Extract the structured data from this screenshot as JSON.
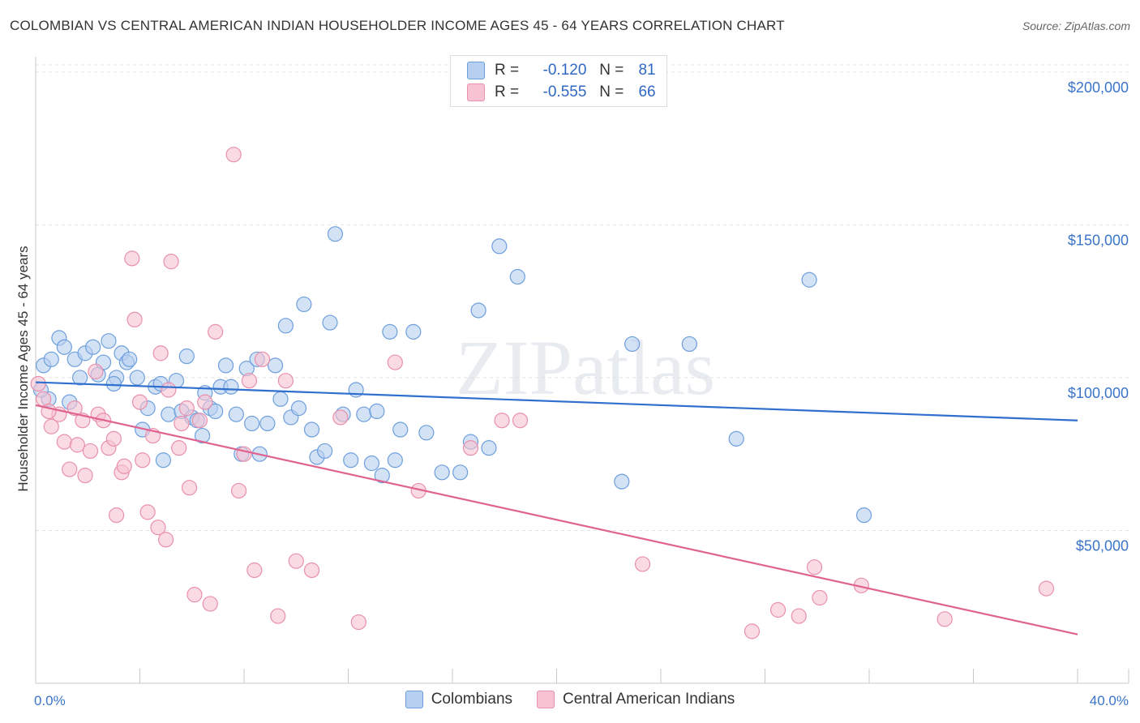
{
  "title": "COLOMBIAN VS CENTRAL AMERICAN INDIAN HOUSEHOLDER INCOME AGES 45 - 64 YEARS CORRELATION CHART",
  "source": "Source: ZipAtlas.com",
  "watermark": "ZIPatlas",
  "colors": {
    "blue_fill": "#b7cff0",
    "blue_stroke": "#6d9fdc",
    "blue_line": "#2f6fce",
    "pink_fill": "#f7c3d2",
    "pink_stroke": "#e890ac",
    "pink_line": "#e0638f"
  },
  "legend": {
    "rows": [
      {
        "r_label": "R =",
        "r_value": "-0.120",
        "n_label": "N =",
        "n_value": "81"
      },
      {
        "r_label": "R =",
        "r_value": "-0.555",
        "n_label": "N =",
        "n_value": "66"
      }
    ]
  },
  "chart_data": {
    "type": "scatter",
    "title": "COLOMBIAN VS CENTRAL AMERICAN INDIAN HOUSEHOLDER INCOME AGES 45 - 64 YEARS CORRELATION CHART",
    "xlabel": "",
    "ylabel": "Householder Income Ages 45 - 64 years",
    "xlim": [
      0,
      40
    ],
    "ylim": [
      0,
      205000
    ],
    "x_tick_labels": [
      "0.0%",
      "40.0%"
    ],
    "y_ticks": [
      50000,
      100000,
      150000,
      200000
    ],
    "y_tick_labels": [
      "$50,000",
      "$100,000",
      "$150,000",
      "$200,000"
    ],
    "grid": true,
    "legend_position": "top-center",
    "series": [
      {
        "name": "Colombians",
        "trend": [
          [
            0,
            98500
          ],
          [
            40,
            86000
          ]
        ],
        "points": [
          [
            0.3,
            104000
          ],
          [
            0.5,
            93000
          ],
          [
            0.6,
            106000
          ],
          [
            0.9,
            113000
          ],
          [
            1.1,
            110000
          ],
          [
            1.5,
            106000
          ],
          [
            1.7,
            100000
          ],
          [
            1.9,
            108000
          ],
          [
            2.2,
            110000
          ],
          [
            2.6,
            105000
          ],
          [
            2.8,
            112000
          ],
          [
            3.1,
            100000
          ],
          [
            3.3,
            108000
          ],
          [
            3.5,
            105000
          ],
          [
            3.6,
            106000
          ],
          [
            3.9,
            100000
          ],
          [
            4.1,
            83000
          ],
          [
            4.3,
            90000
          ],
          [
            4.6,
            97000
          ],
          [
            4.9,
            73000
          ],
          [
            4.8,
            98000
          ],
          [
            5.1,
            88000
          ],
          [
            5.4,
            99000
          ],
          [
            5.6,
            89000
          ],
          [
            5.8,
            107000
          ],
          [
            6.0,
            87000
          ],
          [
            6.2,
            86000
          ],
          [
            6.4,
            81000
          ],
          [
            6.7,
            90000
          ],
          [
            6.9,
            89000
          ],
          [
            7.1,
            97000
          ],
          [
            7.3,
            104000
          ],
          [
            7.5,
            97000
          ],
          [
            7.7,
            88000
          ],
          [
            7.9,
            75000
          ],
          [
            8.1,
            103000
          ],
          [
            8.3,
            85000
          ],
          [
            8.5,
            106000
          ],
          [
            8.6,
            75000
          ],
          [
            8.9,
            85000
          ],
          [
            9.2,
            104000
          ],
          [
            9.4,
            93000
          ],
          [
            9.6,
            117000
          ],
          [
            9.8,
            87000
          ],
          [
            10.1,
            90000
          ],
          [
            10.3,
            124000
          ],
          [
            10.6,
            83000
          ],
          [
            10.8,
            74000
          ],
          [
            11.1,
            76000
          ],
          [
            11.3,
            118000
          ],
          [
            11.5,
            147000
          ],
          [
            11.8,
            88000
          ],
          [
            12.1,
            73000
          ],
          [
            12.3,
            96000
          ],
          [
            12.6,
            88000
          ],
          [
            12.9,
            72000
          ],
          [
            13.1,
            89000
          ],
          [
            13.3,
            68000
          ],
          [
            13.6,
            115000
          ],
          [
            13.8,
            73000
          ],
          [
            14.0,
            83000
          ],
          [
            14.5,
            115000
          ],
          [
            15.0,
            82000
          ],
          [
            15.6,
            69000
          ],
          [
            16.3,
            69000
          ],
          [
            16.7,
            79000
          ],
          [
            17.0,
            122000
          ],
          [
            17.4,
            77000
          ],
          [
            17.8,
            143000
          ],
          [
            18.5,
            133000
          ],
          [
            22.5,
            66000
          ],
          [
            22.9,
            111000
          ],
          [
            25.1,
            111000
          ],
          [
            26.9,
            80000
          ],
          [
            29.7,
            132000
          ],
          [
            31.8,
            55000
          ],
          [
            0.2,
            96000
          ],
          [
            1.3,
            92000
          ],
          [
            2.4,
            101000
          ],
          [
            3.0,
            98000
          ],
          [
            6.5,
            95000
          ]
        ]
      },
      {
        "name": "Central American Indians",
        "trend": [
          [
            0,
            91000
          ],
          [
            40,
            16000
          ]
        ],
        "points": [
          [
            0.1,
            98000
          ],
          [
            0.3,
            93000
          ],
          [
            0.6,
            84000
          ],
          [
            0.9,
            88000
          ],
          [
            1.1,
            79000
          ],
          [
            1.3,
            70000
          ],
          [
            1.5,
            90000
          ],
          [
            1.6,
            78000
          ],
          [
            1.8,
            86000
          ],
          [
            1.9,
            68000
          ],
          [
            2.1,
            76000
          ],
          [
            2.3,
            102000
          ],
          [
            2.4,
            88000
          ],
          [
            2.6,
            86000
          ],
          [
            2.8,
            77000
          ],
          [
            3.0,
            80000
          ],
          [
            3.1,
            55000
          ],
          [
            3.3,
            69000
          ],
          [
            3.4,
            71000
          ],
          [
            3.7,
            139000
          ],
          [
            3.8,
            119000
          ],
          [
            4.0,
            92000
          ],
          [
            4.1,
            73000
          ],
          [
            4.3,
            56000
          ],
          [
            4.5,
            81000
          ],
          [
            4.7,
            51000
          ],
          [
            4.8,
            108000
          ],
          [
            5.0,
            47000
          ],
          [
            5.1,
            96000
          ],
          [
            5.2,
            138000
          ],
          [
            5.5,
            77000
          ],
          [
            5.6,
            85000
          ],
          [
            5.8,
            90000
          ],
          [
            5.9,
            64000
          ],
          [
            6.1,
            29000
          ],
          [
            6.3,
            86000
          ],
          [
            6.5,
            92000
          ],
          [
            6.7,
            26000
          ],
          [
            6.9,
            115000
          ],
          [
            7.6,
            173000
          ],
          [
            7.8,
            63000
          ],
          [
            8.0,
            75000
          ],
          [
            8.2,
            99000
          ],
          [
            8.4,
            37000
          ],
          [
            8.7,
            106000
          ],
          [
            9.3,
            22000
          ],
          [
            9.6,
            99000
          ],
          [
            10.0,
            40000
          ],
          [
            10.6,
            37000
          ],
          [
            11.7,
            87000
          ],
          [
            12.4,
            20000
          ],
          [
            13.8,
            105000
          ],
          [
            14.7,
            63000
          ],
          [
            16.7,
            77000
          ],
          [
            17.9,
            86000
          ],
          [
            18.6,
            86000
          ],
          [
            23.3,
            39000
          ],
          [
            27.5,
            17000
          ],
          [
            28.5,
            24000
          ],
          [
            29.3,
            22000
          ],
          [
            29.9,
            38000
          ],
          [
            30.1,
            28000
          ],
          [
            31.7,
            32000
          ],
          [
            34.9,
            21000
          ],
          [
            38.8,
            31000
          ],
          [
            0.5,
            89000
          ]
        ]
      }
    ]
  }
}
